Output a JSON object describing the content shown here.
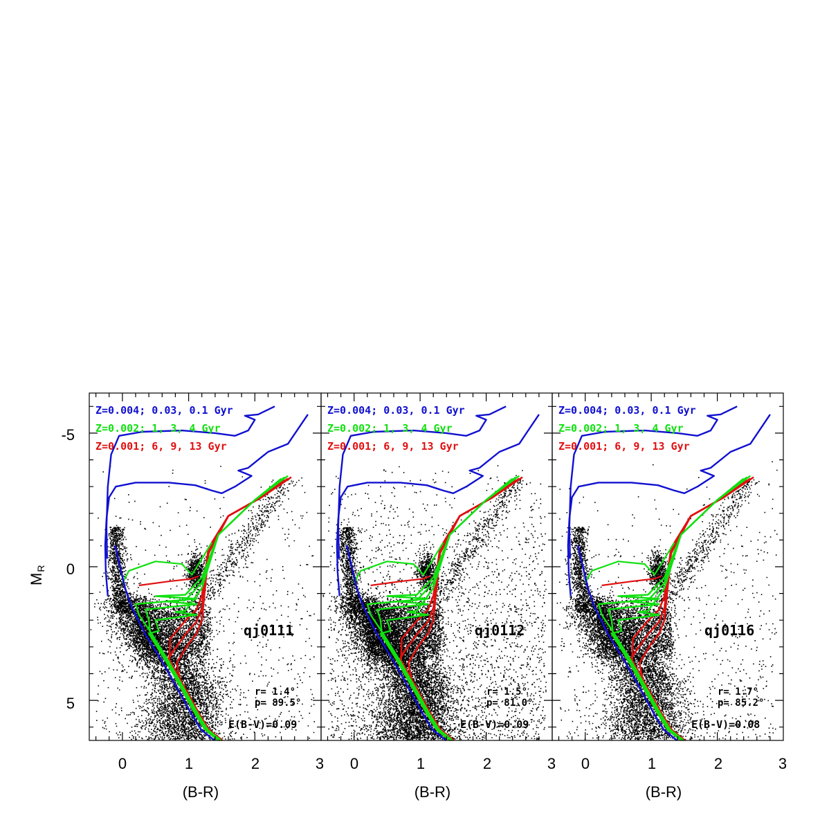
{
  "colors": {
    "blue": "#1010d0",
    "green": "#10e010",
    "red": "#e01010",
    "stars": "#000000"
  },
  "shared": {
    "ylabel": "M",
    "ylabel_sub": "R",
    "y_ticks": [
      "-5",
      "0",
      "5"
    ],
    "legend": [
      {
        "text": "Z=0.004; 0.03, 0.1 Gyr",
        "color": "#1010d0"
      },
      {
        "text": "Z=0.002; 1, 3, 4 Gyr",
        "color": "#10e010"
      },
      {
        "text": "Z=0.001; 6, 9, 13 Gyr",
        "color": "#e01010"
      }
    ]
  },
  "chart_data": [
    {
      "type": "scatter",
      "field": "qj0111",
      "xlabel": "(B-R)",
      "x_ticks": [
        "0",
        "1",
        "2",
        "3"
      ],
      "xlim": [
        -0.5,
        3.0
      ],
      "ylim": [
        6.5,
        -6.5
      ],
      "r": "r= 1.4°",
      "p": "p= 89.5°",
      "ebv": "E(B-V)=0.09"
    },
    {
      "type": "scatter",
      "field": "qj0112",
      "xlabel": "(B-R)",
      "x_ticks": [
        "0",
        "1",
        "2",
        "3"
      ],
      "xlim": [
        -0.5,
        3.0
      ],
      "ylim": [
        6.5,
        -6.5
      ],
      "r": "r= 1.5°",
      "p": "p= 81.0°",
      "ebv": "E(B-V)=0.09"
    },
    {
      "type": "scatter",
      "field": "qj0116",
      "xlabel": "(B-R)",
      "x_ticks": [
        "0",
        "1",
        "2",
        "3"
      ],
      "xlim": [
        -0.5,
        3.0
      ],
      "ylim": [
        6.5,
        -6.5
      ],
      "r": "r= 1.7°",
      "p": "p= 85.2°",
      "ebv": "E(B-V)=0.08"
    }
  ]
}
